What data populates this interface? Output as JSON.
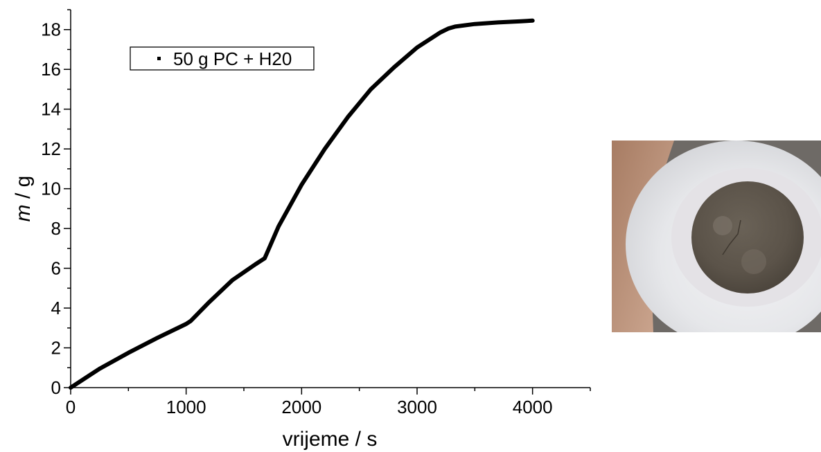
{
  "chart_data": {
    "type": "line",
    "xlabel": "vrijeme / s",
    "ylabel_italic": "m",
    "ylabel_rest": " / g",
    "xlim": [
      0,
      4500
    ],
    "ylim": [
      0,
      19
    ],
    "x_ticks": [
      0,
      1000,
      2000,
      3000,
      4000
    ],
    "y_ticks": [
      0,
      2,
      4,
      6,
      8,
      10,
      12,
      14,
      16,
      18
    ],
    "x_minor_step": 500,
    "y_minor_step": 1,
    "grid": false,
    "legend_position": "top-left",
    "series": [
      {
        "name": "50 g PC + H20",
        "color": "#000000",
        "x": [
          0,
          250,
          500,
          750,
          1000,
          1040,
          1200,
          1400,
          1600,
          1680,
          1800,
          2000,
          2200,
          2400,
          2600,
          2800,
          3000,
          3200,
          3270,
          3330,
          3500,
          3700,
          3900,
          4000
        ],
        "y": [
          0.0,
          0.95,
          1.75,
          2.5,
          3.2,
          3.35,
          4.3,
          5.4,
          6.2,
          6.5,
          8.1,
          10.2,
          12.0,
          13.6,
          15.0,
          16.1,
          17.1,
          17.85,
          18.05,
          18.15,
          18.28,
          18.36,
          18.42,
          18.45
        ]
      }
    ]
  },
  "photo": {
    "description_icon": "sample-dish-photo",
    "colors": {
      "sample": "#5f574d",
      "dish": "#e9e9ec",
      "skin": "#b8907a"
    }
  }
}
